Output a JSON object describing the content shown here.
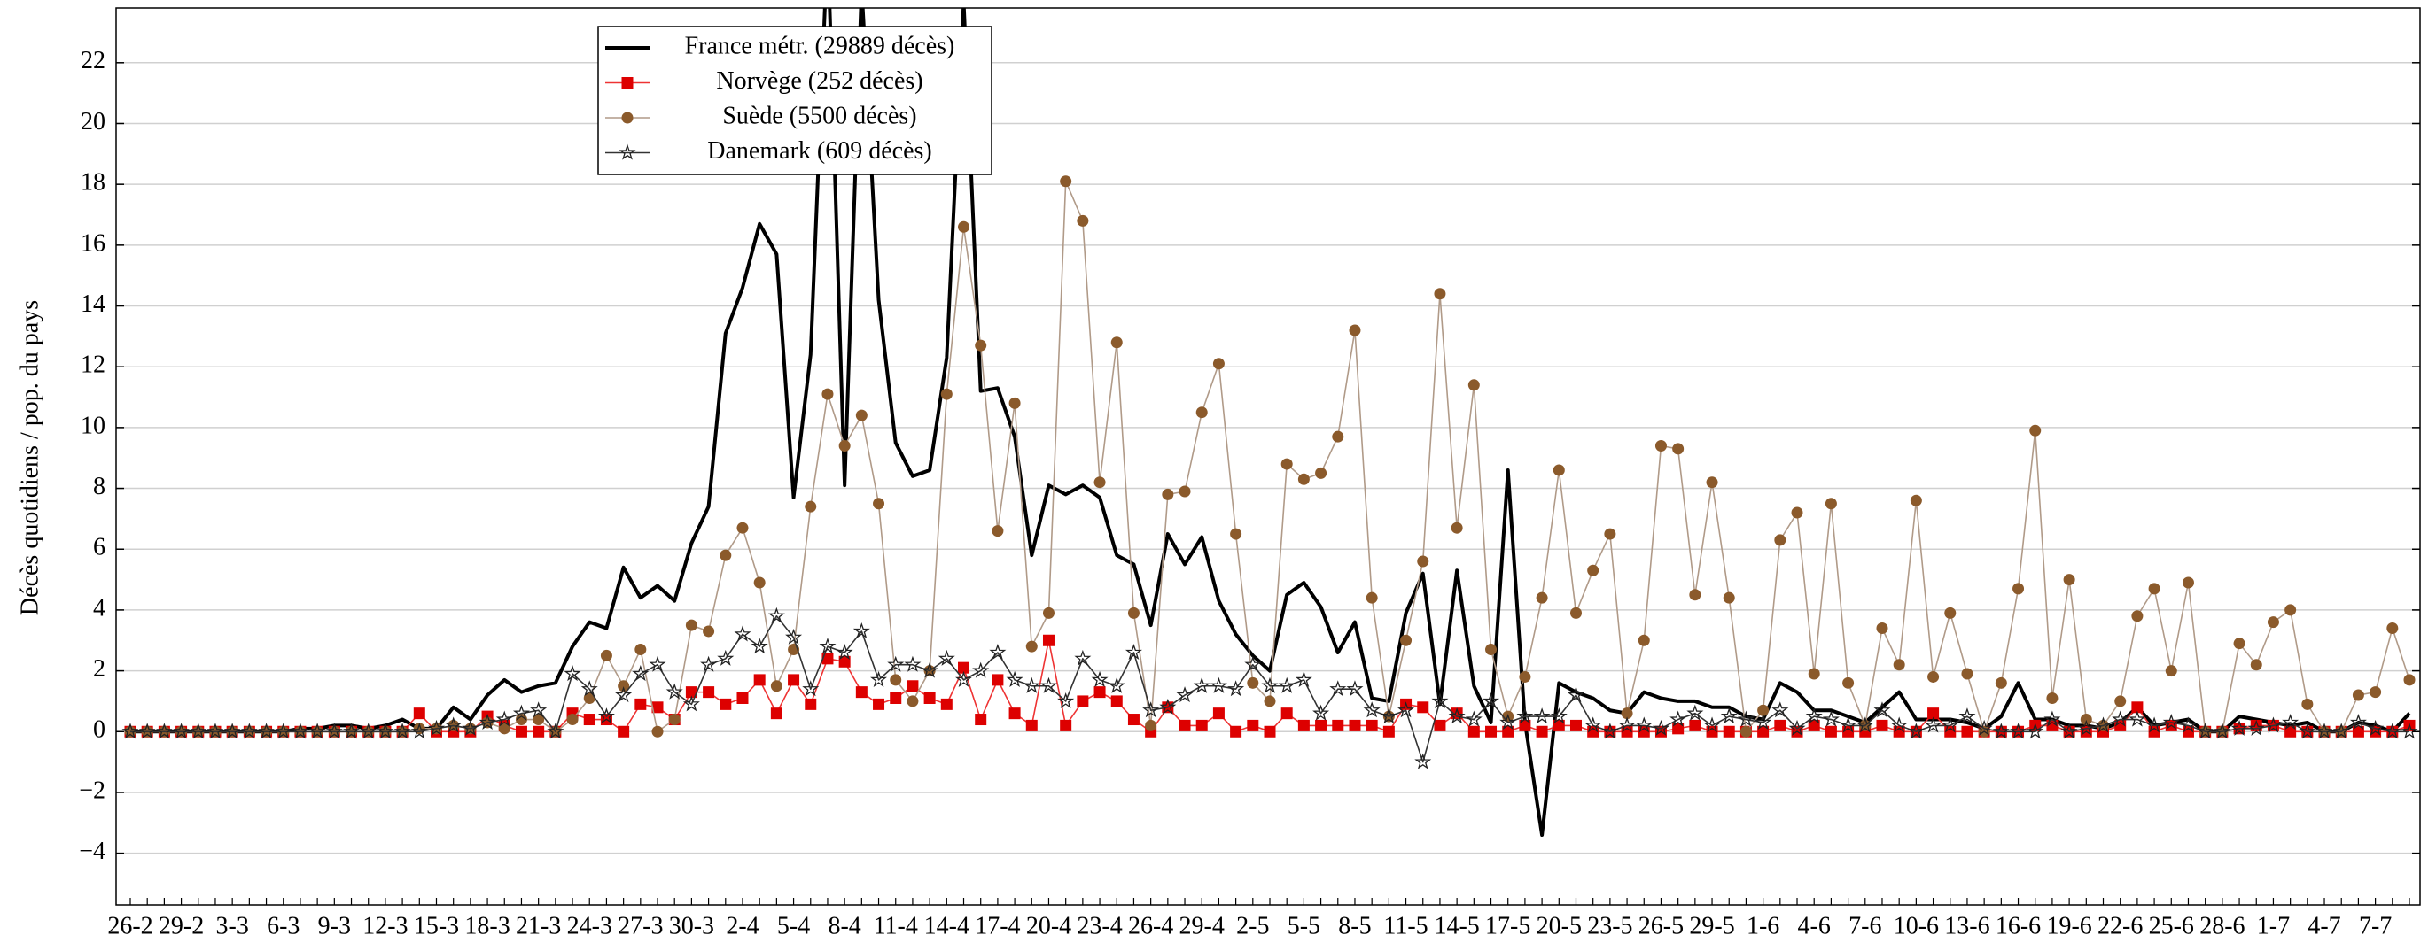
{
  "chart_data": {
    "type": "line",
    "y_label": "Décès quotidiens / pop. du pays",
    "categories": [
      "26-2",
      null,
      null,
      "29-2",
      null,
      null,
      "3-3",
      null,
      null,
      "6-3",
      null,
      null,
      "9-3",
      null,
      null,
      "12-3",
      null,
      null,
      "15-3",
      null,
      null,
      "18-3",
      null,
      null,
      "21-3",
      null,
      null,
      "24-3",
      null,
      null,
      "27-3",
      null,
      null,
      "30-3",
      null,
      null,
      "2-4",
      null,
      null,
      "5-4",
      null,
      null,
      "8-4",
      null,
      null,
      "11-4",
      null,
      null,
      "14-4",
      null,
      null,
      "17-4",
      null,
      null,
      "20-4",
      null,
      null,
      "23-4",
      null,
      null,
      "26-4",
      null,
      null,
      "29-4",
      null,
      null,
      "2-5",
      null,
      null,
      "5-5",
      null,
      null,
      "8-5",
      null,
      null,
      "11-5",
      null,
      null,
      "14-5",
      null,
      null,
      "17-5",
      null,
      null,
      "20-5",
      null,
      null,
      "23-5",
      null,
      null,
      "26-5",
      null,
      null,
      "29-5",
      null,
      null,
      "1-6",
      null,
      null,
      "4-6",
      null,
      null,
      "7-6",
      null,
      null,
      "10-6",
      null,
      null,
      "13-6",
      null,
      null,
      "16-6",
      null,
      null,
      "19-6",
      null,
      null,
      "22-6",
      null,
      null,
      "25-6",
      null,
      null,
      "28-6",
      null,
      null,
      "1-7",
      null,
      null,
      "4-7",
      null,
      null,
      "7-7",
      null,
      null
    ],
    "ylim": [
      -5.7,
      23.8
    ],
    "yticks": [
      {
        "value": -4,
        "label": "−4"
      },
      {
        "value": -2,
        "label": "−2"
      },
      0,
      2,
      4,
      6,
      8,
      10,
      12,
      14,
      16,
      18,
      20,
      22
    ],
    "grid": true,
    "legend": "top",
    "series": [
      {
        "name": "France métr. (29889 décès)",
        "color": "#000000",
        "line_color": "#000000",
        "marker": "none",
        "values": [
          0,
          0,
          0,
          0,
          0,
          0,
          0,
          0,
          0,
          0,
          0.1,
          0.1,
          0.2,
          0.2,
          0.1,
          0.2,
          0.4,
          0.1,
          0.1,
          0.8,
          0.4,
          1.2,
          1.7,
          1.3,
          1.5,
          1.6,
          2.8,
          3.6,
          3.4,
          5.4,
          4.4,
          4.8,
          4.3,
          6.2,
          7.4,
          13.1,
          14.6,
          16.7,
          15.7,
          7.7,
          12.4,
          26,
          8.1,
          24.5,
          14.2,
          9.5,
          8.4,
          8.6,
          12.3,
          24,
          11.2,
          11.3,
          9.7,
          5.8,
          8.1,
          7.8,
          8.1,
          7.7,
          5.8,
          5.5,
          3.5,
          6.5,
          5.5,
          6.4,
          4.3,
          3.2,
          2.5,
          2.0,
          4.5,
          4.9,
          4.1,
          2.6,
          3.6,
          1.1,
          1.0,
          3.9,
          5.2,
          0.9,
          5.3,
          1.5,
          0.3,
          8.6,
          0.3,
          -3.4,
          1.6,
          1.3,
          1.1,
          0.7,
          0.6,
          1.3,
          1.1,
          1.0,
          1.0,
          0.8,
          0.8,
          0.5,
          0.4,
          1.6,
          1.3,
          0.7,
          0.7,
          0.5,
          0.3,
          0.8,
          1.3,
          0.4,
          0.4,
          0.4,
          0.3,
          0.1,
          0.5,
          1.6,
          0.4,
          0.4,
          0.2,
          0.2,
          0.1,
          0.3,
          0.8,
          0.2,
          0.3,
          0.4,
          0,
          0,
          0.5,
          0.4,
          0.3,
          0.2,
          0.3,
          0,
          0,
          0.3,
          0.2,
          0,
          0.6
        ]
      },
      {
        "name": "Norvège (252 décès)",
        "color": "#dd0000",
        "line_color": "#ee3333",
        "marker": "square",
        "values": [
          0,
          0,
          0,
          0,
          0,
          0,
          0,
          0,
          0,
          0,
          0,
          0,
          0,
          0,
          0,
          0,
          0,
          0.6,
          0,
          0,
          0,
          0.5,
          0.2,
          0,
          0,
          0,
          0.6,
          0.4,
          0.4,
          0,
          0.9,
          0.8,
          0.4,
          1.3,
          1.3,
          0.9,
          1.1,
          1.7,
          0.6,
          1.7,
          0.9,
          2.4,
          2.3,
          1.3,
          0.9,
          1.1,
          1.5,
          1.1,
          0.9,
          2.1,
          0.4,
          1.7,
          0.6,
          0.2,
          3.0,
          0.2,
          1.0,
          1.3,
          1.0,
          0.4,
          0,
          0.8,
          0.2,
          0.2,
          0.6,
          0,
          0.2,
          0,
          0.6,
          0.2,
          0.2,
          0.2,
          0.2,
          0.2,
          0,
          0.9,
          0.8,
          0.2,
          0.6,
          0,
          0,
          0,
          0.2,
          0,
          0.2,
          0.2,
          0,
          0,
          0,
          0,
          0,
          0.1,
          0.2,
          0,
          0,
          0,
          0,
          0.2,
          0,
          0.2,
          0,
          0,
          0,
          0.2,
          0,
          0,
          0.6,
          0,
          0,
          0,
          0,
          0,
          0.2,
          0.2,
          0,
          0,
          0,
          0.2,
          0.8,
          0,
          0.2,
          0,
          0,
          0,
          0.1,
          0.2,
          0.2,
          0,
          0,
          0,
          0,
          0,
          0,
          0,
          0.2
        ]
      },
      {
        "name": "Suède (5500 décès)",
        "color": "#8b5a2b",
        "line_color": "#b09a88",
        "marker": "circle",
        "values": [
          0,
          0,
          0,
          0,
          0,
          0,
          0,
          0,
          0,
          0,
          0,
          0,
          0,
          0,
          0,
          0,
          0,
          0.1,
          0.1,
          0.2,
          0.1,
          0.3,
          0.1,
          0.4,
          0.4,
          0,
          0.4,
          1.1,
          2.5,
          1.5,
          2.7,
          0,
          0.4,
          3.5,
          3.3,
          5.8,
          6.7,
          4.9,
          1.5,
          2.7,
          7.4,
          11.1,
          9.4,
          10.4,
          7.5,
          1.7,
          1.0,
          2.0,
          11.1,
          16.6,
          12.7,
          6.6,
          10.8,
          2.8,
          3.9,
          18.1,
          16.8,
          8.2,
          12.8,
          3.9,
          0.2,
          7.8,
          7.9,
          10.5,
          12.1,
          6.5,
          1.6,
          1.0,
          8.8,
          8.3,
          8.5,
          9.7,
          13.2,
          4.4,
          0.5,
          3.0,
          5.6,
          14.4,
          6.7,
          11.4,
          2.7,
          0.5,
          1.8,
          4.4,
          8.6,
          3.9,
          5.3,
          6.5,
          0.6,
          3.0,
          9.4,
          9.3,
          4.5,
          8.2,
          4.4,
          0,
          0.7,
          6.3,
          7.2,
          1.9,
          7.5,
          1.6,
          0.2,
          3.4,
          2.2,
          7.6,
          1.8,
          3.9,
          1.9,
          0,
          1.6,
          4.7,
          9.9,
          1.1,
          5.0,
          0.4,
          0.2,
          1.0,
          3.8,
          4.7,
          2.0,
          4.9,
          0,
          0,
          2.9,
          2.2,
          3.6,
          4.0,
          0.9,
          0,
          0,
          1.2,
          1.3,
          3.4,
          1.7
        ]
      },
      {
        "name": "Danemark (609 décès)",
        "color": "#222222",
        "line_color": "#333333",
        "marker": "star",
        "values": [
          0,
          0,
          0,
          0,
          0,
          0,
          0,
          0,
          0,
          0,
          0,
          0,
          0,
          0,
          0,
          0,
          0,
          0,
          0.1,
          0.2,
          0.1,
          0.3,
          0.4,
          0.6,
          0.7,
          0,
          1.9,
          1.4,
          0.5,
          1.2,
          1.9,
          2.2,
          1.3,
          0.9,
          2.2,
          2.4,
          3.2,
          2.8,
          3.8,
          3.1,
          1.4,
          2.8,
          2.6,
          3.3,
          1.7,
          2.2,
          2.2,
          2.0,
          2.4,
          1.7,
          2.0,
          2.6,
          1.7,
          1.5,
          1.5,
          1.0,
          2.4,
          1.7,
          1.5,
          2.6,
          0.7,
          0.8,
          1.2,
          1.5,
          1.5,
          1.4,
          2.2,
          1.5,
          1.5,
          1.7,
          0.6,
          1.4,
          1.4,
          0.7,
          0.5,
          0.7,
          -1.0,
          1.0,
          0.5,
          0.4,
          1.0,
          0.3,
          0.5,
          0.5,
          0.5,
          1.2,
          0.2,
          0,
          0.2,
          0.2,
          0.1,
          0.4,
          0.6,
          0.2,
          0.5,
          0.4,
          0.3,
          0.7,
          0.1,
          0.5,
          0.4,
          0.2,
          0.2,
          0.7,
          0.2,
          0,
          0.2,
          0.2,
          0.5,
          0.1,
          0,
          0,
          0,
          0.4,
          0,
          0.1,
          0.2,
          0.4,
          0.4,
          0.2,
          0.3,
          0.2,
          0,
          0,
          0.1,
          0.1,
          0.2,
          0.3,
          0,
          0,
          0,
          0.3,
          0.1,
          0,
          0
        ]
      }
    ]
  }
}
